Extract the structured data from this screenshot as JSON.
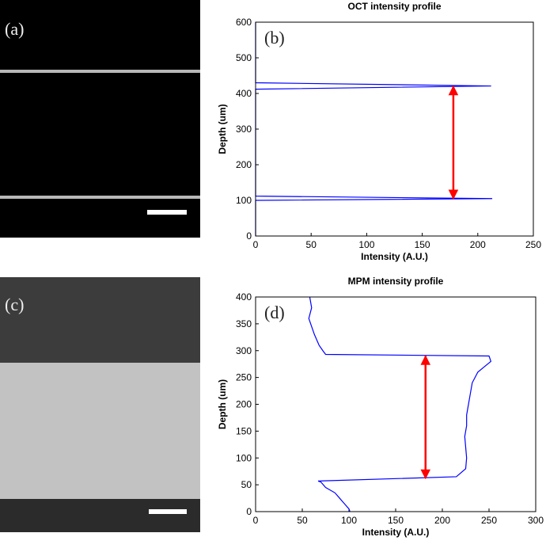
{
  "panels": {
    "a": "(a)",
    "c": "(c)"
  },
  "chart_data": [
    {
      "type": "line",
      "title": "OCT intensity profile",
      "annotation": "(b)",
      "xlabel": "Intensity (A.U.)",
      "ylabel": "Depth (um)",
      "xlim": [
        0,
        250
      ],
      "xticks": [
        0,
        50,
        100,
        150,
        200,
        250
      ],
      "ylim": [
        0,
        600
      ],
      "yticks": [
        0,
        100,
        200,
        300,
        400,
        500,
        600
      ],
      "series": [
        {
          "color": "#0000ff",
          "x": [
            0,
            0,
            212,
            0,
            0,
            213,
            0,
            0
          ],
          "y": [
            600,
            430,
            421,
            412,
            112,
            105,
            100,
            0
          ]
        }
      ],
      "arrow": {
        "color": "#ff0000",
        "x": 178,
        "y": [
          105,
          420
        ]
      }
    },
    {
      "type": "line",
      "title": "MPM intensity profile",
      "annotation": "(d)",
      "xlabel": "Intensity (A.U.)",
      "ylabel": "Depth (um)",
      "xlim": [
        0,
        300
      ],
      "xticks": [
        0,
        50,
        100,
        150,
        200,
        250,
        300
      ],
      "ylim": [
        0,
        400
      ],
      "yticks": [
        0,
        50,
        100,
        150,
        200,
        250,
        300,
        350,
        400
      ],
      "series": [
        {
          "color": "#0000ff",
          "x": [
            58,
            60,
            57,
            60,
            63,
            68,
            72,
            75,
            250,
            252,
            245,
            238,
            232,
            230,
            228,
            226,
            226,
            224,
            225,
            226,
            225,
            215,
            67,
            70,
            75,
            85,
            90,
            95,
            100,
            101
          ],
          "y": [
            400,
            380,
            360,
            345,
            330,
            310,
            300,
            293,
            290,
            280,
            270,
            260,
            240,
            220,
            200,
            180,
            160,
            140,
            120,
            100,
            80,
            65,
            57,
            55,
            45,
            35,
            25,
            15,
            5,
            0
          ]
        }
      ],
      "arrow": {
        "color": "#ff0000",
        "x": 182,
        "y": [
          62,
          290
        ]
      }
    }
  ]
}
